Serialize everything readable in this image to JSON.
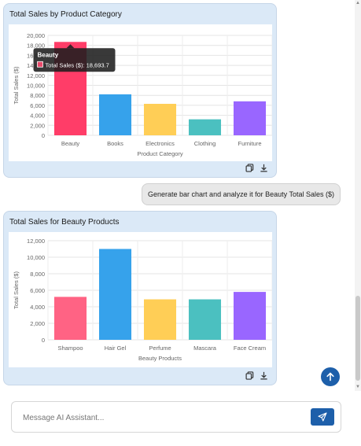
{
  "messages": {
    "chart1": {
      "title": "Total Sales by Product Category",
      "tooltip": {
        "title": "Beauty",
        "label": "Total Sales ($): 18,693.7",
        "swatch_color": "#e84a6b"
      }
    },
    "user_message": "Generate bar chart and analyze it for Beauty Total Sales ($)",
    "chart2": {
      "title": "Total Sales for Beauty Products"
    }
  },
  "composer": {
    "placeholder": "Message AI Assistant..."
  },
  "icons": {
    "copy": "copy-icon",
    "download": "download-icon",
    "scroll_down": "arrow-up-icon",
    "send": "send-icon"
  },
  "chart_data": [
    {
      "type": "bar",
      "title": "",
      "xlabel": "Product Category",
      "ylabel": "Total Sales ($)",
      "categories": [
        "Beauty",
        "Books",
        "Electronics",
        "Clothing",
        "Furniture"
      ],
      "values": [
        18693.7,
        8200,
        6300,
        3200,
        6800
      ],
      "colors": [
        "#ff3d68",
        "#36a2eb",
        "#ffce56",
        "#4bc0c0",
        "#9966ff"
      ],
      "ylim": [
        0,
        20000
      ],
      "yticks": [
        "0",
        "2,000",
        "4,000",
        "6,000",
        "8,000",
        "10,000",
        "12,000",
        "14,000",
        "16,000",
        "18,000",
        "20,000"
      ],
      "grid": true,
      "legend": "none"
    },
    {
      "type": "bar",
      "title": "",
      "xlabel": "Beauty Products",
      "ylabel": "Total Sales ($)",
      "categories": [
        "Shampoo",
        "Hair Gel",
        "Perfume",
        "Mascara",
        "Face Cream"
      ],
      "values": [
        5200,
        11000,
        4900,
        4900,
        5800
      ],
      "colors": [
        "#ff6384",
        "#36a2eb",
        "#ffce56",
        "#4bc0c0",
        "#9966ff"
      ],
      "ylim": [
        0,
        12000
      ],
      "yticks": [
        "0",
        "2,000",
        "4,000",
        "6,000",
        "8,000",
        "10,000",
        "12,000"
      ],
      "grid": true,
      "legend": "none"
    }
  ]
}
